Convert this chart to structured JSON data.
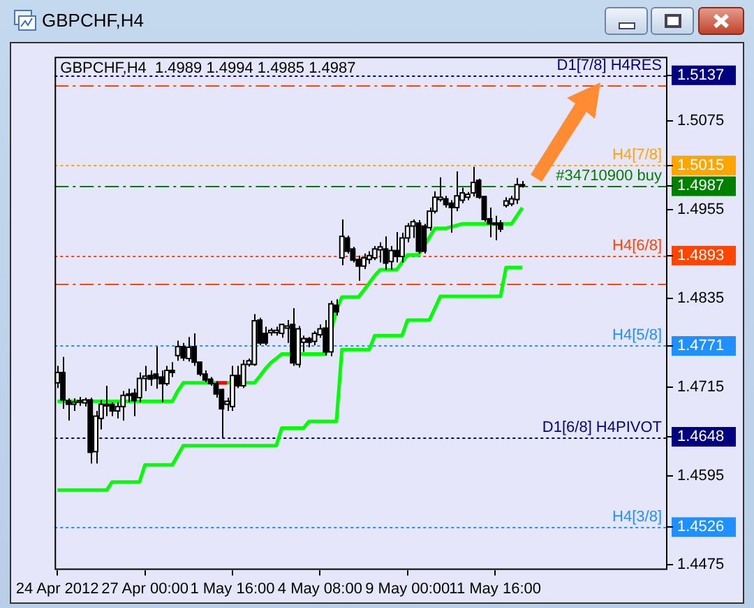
{
  "chart_data": {
    "type": "candlestick",
    "title": "GBPCHF,H4",
    "subtitle": "GBPCHF,H4  1.4989 1.4994 1.4985 1.4987",
    "categories": [
      "24 Apr 2012",
      null,
      null,
      null,
      null,
      null,
      null,
      null,
      null,
      null,
      null,
      null,
      null,
      null,
      null,
      null,
      "27 Apr 00:00",
      null,
      null,
      null,
      null,
      null,
      null,
      null,
      null,
      null,
      null,
      null,
      null,
      null,
      null,
      null,
      "1 May 16:00",
      null,
      null,
      null,
      null,
      null,
      null,
      null,
      null,
      null,
      null,
      null,
      null,
      null,
      null,
      null,
      "4 May 08:00",
      null,
      null,
      null,
      null,
      null,
      null,
      null,
      null,
      null,
      null,
      null,
      null,
      null,
      null,
      null,
      "9 May 00:00",
      null,
      null,
      null,
      null,
      null,
      null,
      null,
      null,
      null,
      null,
      null,
      null,
      null,
      null,
      null,
      "11 May 16:00",
      null,
      null,
      null,
      null,
      null,
      null,
      null,
      null,
      null,
      null,
      null,
      null,
      null,
      null,
      null,
      null,
      null,
      null,
      null,
      null,
      null,
      null,
      null,
      null,
      null,
      null,
      null,
      null,
      null,
      null,
      null
    ],
    "ohlc": [
      [
        1.4721,
        1.4744,
        1.4714,
        1.4735
      ],
      [
        1.4735,
        1.4756,
        1.4686,
        1.4698
      ],
      [
        1.4697,
        1.47,
        1.467,
        1.4692
      ],
      [
        1.4692,
        1.47,
        1.4683,
        1.4695
      ],
      [
        1.4695,
        1.4702,
        1.469,
        1.4697
      ],
      [
        1.4694,
        1.4701,
        1.4689,
        1.4698
      ],
      [
        1.4698,
        1.4701,
        1.4612,
        1.4627
      ],
      [
        1.4628,
        1.4683,
        1.4612,
        1.4676
      ],
      [
        1.4673,
        1.4698,
        1.4658,
        1.4692
      ],
      [
        1.469,
        1.4717,
        1.4676,
        1.4692
      ],
      [
        1.4692,
        1.4695,
        1.4676,
        1.4683
      ],
      [
        1.4683,
        1.4695,
        1.4673,
        1.4689
      ],
      [
        1.4689,
        1.471,
        1.467,
        1.4704
      ],
      [
        1.4704,
        1.4713,
        1.4695,
        1.4706
      ],
      [
        1.4707,
        1.4713,
        1.4676,
        1.4697
      ],
      [
        1.4701,
        1.4735,
        1.4695,
        1.4727
      ],
      [
        1.4727,
        1.4744,
        1.471,
        1.473
      ],
      [
        1.4731,
        1.4738,
        1.4717,
        1.4726
      ],
      [
        1.4733,
        1.477,
        1.4713,
        1.4727
      ],
      [
        1.4729,
        1.4738,
        1.4695,
        1.472
      ],
      [
        1.472,
        1.4744,
        1.4717,
        1.4738
      ],
      [
        1.4738,
        1.4749,
        1.4729,
        1.4735
      ],
      [
        1.4758,
        1.4778,
        1.4751,
        1.477
      ],
      [
        1.477,
        1.4775,
        1.4751,
        1.4755
      ],
      [
        1.4754,
        1.4783,
        1.475,
        1.4769
      ],
      [
        1.477,
        1.4788,
        1.4744,
        1.4749
      ],
      [
        1.4749,
        1.475,
        1.473,
        1.4733
      ],
      [
        1.4733,
        1.4738,
        1.4722,
        1.4725
      ],
      [
        1.4726,
        1.4729,
        1.4717,
        1.472
      ],
      [
        1.472,
        1.4723,
        1.4701,
        1.4706
      ],
      [
        1.4712,
        1.4713,
        1.4647,
        1.4686
      ],
      [
        1.4692,
        1.4701,
        1.4683,
        1.4696
      ],
      [
        1.4689,
        1.4744,
        1.4683,
        1.4731
      ],
      [
        1.4731,
        1.4744,
        1.4714,
        1.4717
      ],
      [
        1.4717,
        1.4752,
        1.4714,
        1.4746
      ],
      [
        1.4746,
        1.4754,
        1.4743,
        1.4751
      ],
      [
        1.4746,
        1.4814,
        1.4744,
        1.4805
      ],
      [
        1.4806,
        1.4809,
        1.4772,
        1.4775
      ],
      [
        1.4788,
        1.4797,
        1.4772,
        1.4775
      ],
      [
        1.4789,
        1.4795,
        1.4785,
        1.4792
      ],
      [
        1.4789,
        1.4797,
        1.4785,
        1.4792
      ],
      [
        1.4788,
        1.4801,
        1.4782,
        1.48
      ],
      [
        1.4795,
        1.4806,
        1.4775,
        1.4798
      ],
      [
        1.48,
        1.4822,
        1.4744,
        1.4748
      ],
      [
        1.4746,
        1.4798,
        1.4742,
        1.4794
      ],
      [
        1.4776,
        1.4785,
        1.4763,
        1.4781
      ],
      [
        1.4781,
        1.4783,
        1.4769,
        1.4776
      ],
      [
        1.4777,
        1.4791,
        1.4772,
        1.4788
      ],
      [
        1.4786,
        1.48,
        1.4782,
        1.4794
      ],
      [
        1.4795,
        1.4806,
        1.4758,
        1.4763
      ],
      [
        1.4763,
        1.4832,
        1.4757,
        1.4828
      ],
      [
        1.4826,
        1.4834,
        1.4812,
        1.4817
      ],
      [
        1.489,
        1.4942,
        1.488,
        1.4919
      ],
      [
        1.4917,
        1.492,
        1.4896,
        1.4899
      ],
      [
        1.4902,
        1.4905,
        1.4884,
        1.4887
      ],
      [
        1.4888,
        1.4893,
        1.4859,
        1.4879
      ],
      [
        1.4879,
        1.4896,
        1.4875,
        1.489
      ],
      [
        1.4888,
        1.4899,
        1.4882,
        1.4893
      ],
      [
        1.489,
        1.4906,
        1.4887,
        1.4902
      ],
      [
        1.4901,
        1.4911,
        1.4884,
        1.4905
      ],
      [
        1.4902,
        1.4919,
        1.4874,
        1.4883
      ],
      [
        1.4885,
        1.4906,
        1.4874,
        1.49
      ],
      [
        1.49,
        1.4925,
        1.4884,
        1.4892
      ],
      [
        1.4892,
        1.4924,
        1.4884,
        1.4917
      ],
      [
        1.4917,
        1.4937,
        1.4911,
        1.4933
      ],
      [
        1.4933,
        1.4942,
        1.4917,
        1.4939
      ],
      [
        1.4937,
        1.4941,
        1.4896,
        1.4899
      ],
      [
        1.4933,
        1.4936,
        1.4896,
        1.4899
      ],
      [
        1.4931,
        1.4958,
        1.4927,
        1.4953
      ],
      [
        1.4953,
        1.498,
        1.495,
        1.4972
      ],
      [
        1.4969,
        1.4999,
        1.4966,
        1.4972
      ],
      [
        1.497,
        1.4974,
        1.4958,
        1.4962
      ],
      [
        1.4964,
        1.4968,
        1.4924,
        1.4958
      ],
      [
        1.4958,
        1.5007,
        1.4953,
        1.4974
      ],
      [
        1.4968,
        1.4985,
        1.4964,
        1.4978
      ],
      [
        1.4972,
        1.4979,
        1.4968,
        1.4976
      ],
      [
        1.4978,
        1.5013,
        1.4973,
        1.4992
      ],
      [
        1.4995,
        1.4997,
        1.497,
        1.4972
      ],
      [
        1.4973,
        1.4974,
        1.4939,
        1.4942
      ],
      [
        1.4943,
        1.4958,
        1.4918,
        1.4936
      ],
      [
        1.4937,
        1.4947,
        1.4914,
        1.4935
      ],
      [
        1.4937,
        1.4941,
        1.4925,
        1.4929
      ],
      [
        1.4961,
        1.4972,
        1.4958,
        1.4967
      ],
      [
        1.4963,
        1.4974,
        1.496,
        1.497
      ],
      [
        1.4969,
        1.4998,
        1.4963,
        1.4989
      ],
      [
        1.4989,
        1.4994,
        1.4985,
        1.4987
      ],
      null,
      null,
      null,
      null,
      null,
      null,
      null,
      null,
      null,
      null,
      null,
      null,
      null,
      null,
      null,
      null,
      null,
      null,
      null,
      null,
      null,
      null,
      null,
      null,
      null,
      null
    ],
    "series": [
      {
        "type": "line",
        "color": "#00ff00",
        "values": [
          1.4696,
          1.4696,
          1.4696,
          1.4696,
          1.4696,
          1.4696,
          1.4696,
          1.4696,
          1.4696,
          1.4696,
          1.4696,
          1.4696,
          1.4696,
          1.4696,
          1.4696,
          1.4696,
          1.4696,
          1.4696,
          1.4696,
          1.4696,
          1.4696,
          1.4696,
          1.471,
          1.4721,
          1.4721,
          1.4721,
          1.4721,
          1.4721,
          1.4721,
          1.4721,
          1.4721,
          1.4721,
          1.4721,
          1.4721,
          1.4721,
          1.4721,
          1.4721,
          1.473,
          1.474,
          1.4748,
          1.4754,
          1.476,
          1.476,
          1.476,
          1.476,
          1.476,
          1.476,
          1.476,
          1.476,
          1.476,
          1.479,
          1.482,
          1.4837,
          1.4837,
          1.4837,
          1.4837,
          1.4846,
          1.4856,
          1.4866,
          1.4874,
          1.4874,
          1.4874,
          1.4874,
          1.4884,
          1.4894,
          1.4894,
          1.4894,
          1.4906,
          1.4918,
          1.493,
          1.493,
          1.493,
          1.4932,
          1.4934,
          1.4936,
          1.4936,
          1.4936,
          1.4936,
          1.4936,
          1.4936,
          1.4936,
          1.4936,
          1.4936,
          1.4936,
          1.4947,
          1.4958,
          null,
          null,
          null,
          null,
          null,
          null,
          null,
          null,
          null,
          null,
          null,
          null,
          null,
          null,
          null,
          null,
          null,
          null,
          null,
          null,
          null,
          null,
          null,
          null,
          null,
          null
        ]
      },
      {
        "type": "line",
        "color": "#ff0000",
        "values": [
          null,
          null,
          null,
          null,
          null,
          null,
          null,
          null,
          null,
          null,
          null,
          null,
          null,
          null,
          null,
          null,
          null,
          null,
          null,
          null,
          null,
          null,
          null,
          null,
          null,
          null,
          null,
          null,
          null,
          1.4721,
          1.4721,
          1.4721,
          null,
          null,
          null,
          null,
          null,
          null,
          null,
          null,
          null,
          null,
          null,
          null,
          null,
          null,
          null,
          null,
          null,
          null,
          null,
          null,
          null,
          null,
          null,
          null,
          null,
          null,
          null,
          null,
          null,
          null,
          null,
          null,
          null,
          null,
          null,
          null,
          null,
          null,
          null,
          null,
          null,
          null,
          null,
          null,
          null,
          null,
          null,
          null,
          null,
          null,
          null,
          null,
          null,
          null,
          null,
          null,
          null,
          null,
          null,
          null,
          null,
          null,
          null,
          null,
          null,
          null,
          null,
          null,
          null,
          null,
          null,
          null,
          null,
          null,
          null,
          null,
          null,
          null,
          null,
          null
        ]
      },
      {
        "type": "line",
        "color": "#00ff00",
        "values": [
          1.4576,
          1.4576,
          1.4576,
          1.4576,
          1.4576,
          1.4576,
          1.4576,
          1.4576,
          1.4576,
          1.4576,
          1.4587,
          1.4587,
          1.4587,
          1.4587,
          1.4587,
          1.4587,
          1.461,
          1.461,
          1.461,
          1.461,
          1.461,
          1.461,
          1.4623,
          1.4636,
          1.4636,
          1.4636,
          1.4636,
          1.4636,
          1.4636,
          1.4636,
          1.4636,
          1.4636,
          1.4636,
          1.4636,
          1.4636,
          1.4636,
          1.4636,
          1.4636,
          1.4636,
          1.4636,
          1.4636,
          1.466,
          1.466,
          1.466,
          1.466,
          1.466,
          1.4669,
          1.4669,
          1.4669,
          1.4669,
          1.4669,
          1.4669,
          1.4766,
          1.4766,
          1.4766,
          1.4766,
          1.4766,
          1.4766,
          1.4785,
          1.4785,
          1.4785,
          1.4785,
          1.4785,
          1.4785,
          1.4806,
          1.4806,
          1.4806,
          1.4806,
          1.4806,
          1.4822,
          1.4838,
          1.4838,
          1.4838,
          1.4838,
          1.4838,
          1.4838,
          1.4838,
          1.4838,
          1.4838,
          1.4838,
          1.4838,
          1.4838,
          1.4877,
          1.4877,
          1.4877,
          1.4877,
          null,
          null,
          null,
          null,
          null,
          null,
          null,
          null,
          null,
          null,
          null,
          null,
          null,
          null,
          null,
          null,
          null,
          null,
          null,
          null,
          null,
          null,
          null,
          null,
          null,
          null
        ]
      }
    ],
    "ylim": [
      1.4468,
      1.5162
    ],
    "yticks": [
      1.4475,
      1.4526,
      1.4595,
      1.4648,
      1.4715,
      1.4771,
      1.4835,
      1.4893,
      1.4955,
      1.4987,
      1.5015,
      1.5075,
      1.5137
    ],
    "grid": false,
    "legend": false,
    "ref_lines": [
      {
        "axis": "y",
        "value": 1.5137,
        "label": "D1[7/8] H4RES",
        "color": "#000080",
        "line_style": "dotted"
      },
      {
        "axis": "y",
        "value": 1.5123,
        "color": "#ff4500",
        "line_style": "dashed"
      },
      {
        "axis": "y",
        "value": 1.5015,
        "label": "H4[7/8]",
        "color": "#ffa500",
        "line_style": "dotted"
      },
      {
        "axis": "y",
        "value": 1.4987,
        "label": "#34710900 buy",
        "color": "#008000",
        "line_style": "dashed"
      },
      {
        "axis": "y",
        "value": 1.4893,
        "label": "H4[6/8]",
        "color": "#ff4500",
        "line_style": "dotted"
      },
      {
        "axis": "y",
        "value": 1.4856,
        "color": "#ff4500",
        "line_style": "dashed"
      },
      {
        "axis": "y",
        "value": 1.4771,
        "label": "H4[5/8]",
        "color": "#1e90ff",
        "line_style": "dotted"
      },
      {
        "axis": "y",
        "value": 1.4648,
        "label": "D1[6/8] H4PIVOT",
        "color": "#000080",
        "line_style": "dotted"
      },
      {
        "axis": "y",
        "value": 1.4526,
        "label": "H4[3/8]",
        "color": "#1e90ff",
        "line_style": "dotted"
      }
    ]
  }
}
